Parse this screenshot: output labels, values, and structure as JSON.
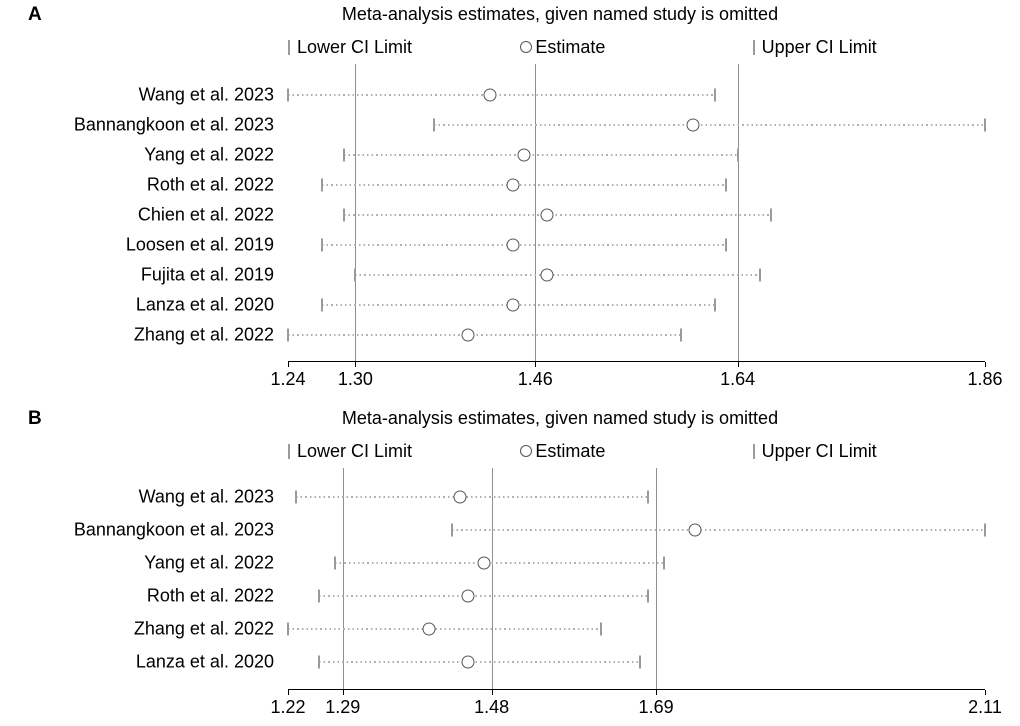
{
  "figure": {
    "background": "#ffffff",
    "text_color": "#000000"
  },
  "colors": {
    "reference_line": "#8f8f8f",
    "ci_line": "#b0b0b0",
    "ci_cap": "#9a9a9a",
    "marker_outline": "#555555",
    "axis_line": "#000000"
  },
  "chart_data": [
    {
      "type": "scatter",
      "subtype": "leave-one-out-sensitivity-forest",
      "panel_label": "A",
      "title": "Meta-analysis estimates, given named study is omitted",
      "legend": [
        "Lower CI Limit",
        "Estimate",
        "Upper CI Limit"
      ],
      "xlim": [
        1.24,
        1.86
      ],
      "xticks": [
        "1.24",
        "1.30",
        "1.46",
        "1.64",
        "1.86"
      ],
      "reference_lines": [
        1.3,
        1.46,
        1.64
      ],
      "grid": false,
      "studies": [
        "Wang et al. 2023",
        "Bannangkoon et al. 2023",
        "Yang et al. 2022",
        "Roth et al. 2022",
        "Chien et al. 2022",
        "Loosen et al. 2019",
        "Fujita et al. 2019",
        "Lanza et al. 2020",
        "Zhang et al. 2022"
      ],
      "lower": [
        1.24,
        1.37,
        1.29,
        1.27,
        1.29,
        1.27,
        1.3,
        1.27,
        1.24
      ],
      "estimate": [
        1.42,
        1.6,
        1.45,
        1.44,
        1.47,
        1.44,
        1.47,
        1.44,
        1.4
      ],
      "upper": [
        1.62,
        1.86,
        1.64,
        1.63,
        1.67,
        1.63,
        1.66,
        1.62,
        1.59
      ]
    },
    {
      "type": "scatter",
      "subtype": "leave-one-out-sensitivity-forest",
      "panel_label": "B",
      "title": "Meta-analysis estimates, given named study is omitted",
      "legend": [
        "Lower CI Limit",
        "Estimate",
        "Upper CI Limit"
      ],
      "xlim": [
        1.22,
        2.11
      ],
      "xticks": [
        "1.22",
        "1.29",
        "1.48",
        "1.69",
        "2.11"
      ],
      "reference_lines": [
        1.29,
        1.48,
        1.69
      ],
      "grid": false,
      "studies": [
        "Wang et al. 2023",
        "Bannangkoon et al. 2023",
        "Yang et al. 2022",
        "Roth et al. 2022",
        "Zhang et al. 2022",
        "Lanza et al. 2020"
      ],
      "lower": [
        1.23,
        1.43,
        1.28,
        1.26,
        1.22,
        1.26
      ],
      "estimate": [
        1.44,
        1.74,
        1.47,
        1.45,
        1.4,
        1.45
      ],
      "upper": [
        1.68,
        2.11,
        1.7,
        1.68,
        1.62,
        1.67
      ]
    }
  ]
}
